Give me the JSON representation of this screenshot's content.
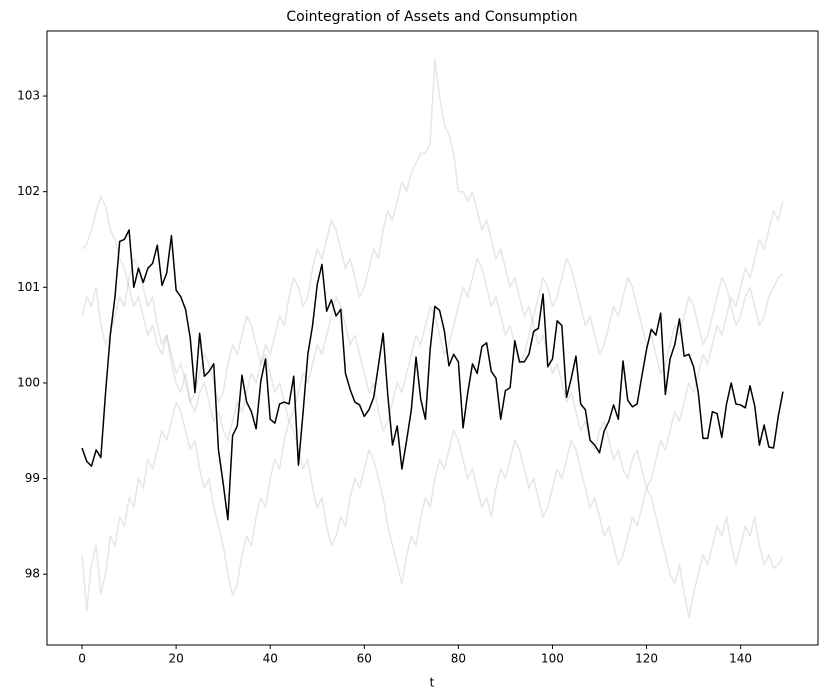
{
  "chart_data": {
    "type": "line",
    "title": "Cointegration of Assets and Consumption",
    "xlabel": "t",
    "x": [
      0,
      1,
      2,
      3,
      4,
      5,
      6,
      7,
      8,
      9,
      10,
      11,
      12,
      13,
      14,
      15,
      16,
      17,
      18,
      19,
      20,
      21,
      22,
      23,
      24,
      25,
      26,
      27,
      28,
      29,
      30,
      31,
      32,
      33,
      34,
      35,
      36,
      37,
      38,
      39,
      40,
      41,
      42,
      43,
      44,
      45,
      46,
      47,
      48,
      49,
      50,
      51,
      52,
      53,
      54,
      55,
      56,
      57,
      58,
      59,
      60,
      61,
      62,
      63,
      64,
      65,
      66,
      67,
      68,
      69,
      70,
      71,
      72,
      73,
      74,
      75,
      76,
      77,
      78,
      79,
      80,
      81,
      82,
      83,
      84,
      85,
      86,
      87,
      88,
      89,
      90,
      91,
      92,
      93,
      94,
      95,
      96,
      97,
      98,
      99,
      100,
      101,
      102,
      103,
      104,
      105,
      106,
      107,
      108,
      109,
      110,
      111,
      112,
      113,
      114,
      115,
      116,
      117,
      118,
      119,
      120,
      121,
      122,
      123,
      124,
      125,
      126,
      127,
      128,
      129,
      130,
      131,
      132,
      133,
      134,
      135,
      136,
      137,
      138,
      139,
      140,
      141,
      142,
      143,
      144,
      145,
      146,
      147,
      148,
      149
    ],
    "xlim": [
      -7.45,
      156.45
    ],
    "xticks": [
      0,
      20,
      40,
      60,
      80,
      100,
      120,
      140
    ],
    "ylim": [
      97.26,
      103.68
    ],
    "yticks": [
      98,
      99,
      100,
      101,
      102,
      103
    ],
    "series": [
      {
        "color": "#808080",
        "opacity": 0.2,
        "values": [
          101.4,
          101.45,
          101.6,
          101.8,
          101.95,
          101.85,
          101.6,
          101.5,
          101.3,
          101.2,
          101.0,
          100.8,
          100.9,
          100.7,
          100.5,
          100.6,
          100.4,
          100.3,
          100.5,
          100.2,
          100.0,
          99.9,
          100.1,
          99.8,
          99.7,
          99.9,
          100.0,
          99.8,
          99.6,
          99.7,
          99.5,
          99.4,
          99.6,
          99.8,
          99.7,
          99.9,
          100.1,
          100.0,
          100.2,
          100.4,
          100.3,
          100.5,
          100.7,
          100.6,
          100.9,
          101.1,
          101.0,
          100.8,
          100.9,
          101.2,
          101.4,
          101.3,
          101.5,
          101.7,
          101.6,
          101.4,
          101.2,
          101.3,
          101.1,
          100.9,
          101.0,
          101.2,
          101.4,
          101.3,
          101.6,
          101.8,
          101.7,
          101.9,
          102.1,
          102.0,
          102.2,
          102.3,
          102.4,
          102.4,
          102.5,
          103.38,
          103.0,
          102.7,
          102.6,
          102.4,
          102.0,
          102.0,
          101.9,
          102.0,
          101.8,
          101.6,
          101.7,
          101.5,
          101.3,
          101.4,
          101.2,
          101.0,
          101.1,
          100.9,
          100.7,
          100.8,
          100.6,
          100.4,
          100.5,
          100.3,
          100.1,
          100.2,
          100.0,
          99.8,
          99.9,
          99.7,
          99.5,
          99.6,
          99.4,
          99.3,
          99.5,
          99.6,
          99.4,
          99.2,
          99.3,
          99.1,
          99.0,
          99.2,
          99.3,
          99.1,
          98.9,
          99.0,
          99.2,
          99.4,
          99.3,
          99.5,
          99.7,
          99.6,
          99.8,
          100.0,
          99.9,
          100.1,
          100.3,
          100.2,
          100.4,
          100.6,
          100.5,
          100.7,
          100.9,
          100.8,
          101.0,
          101.2,
          101.1,
          101.3,
          101.5,
          101.4,
          101.6,
          101.8,
          101.7,
          101.9
        ]
      },
      {
        "color": "#808080",
        "opacity": 0.2,
        "values": [
          98.2,
          97.62,
          98.1,
          98.3,
          97.8,
          98.0,
          98.4,
          98.3,
          98.6,
          98.5,
          98.8,
          98.7,
          99.0,
          98.9,
          99.2,
          99.1,
          99.3,
          99.5,
          99.4,
          99.6,
          99.8,
          99.7,
          99.5,
          99.3,
          99.4,
          99.1,
          98.9,
          99.0,
          98.7,
          98.5,
          98.3,
          98.0,
          97.78,
          97.9,
          98.2,
          98.4,
          98.3,
          98.6,
          98.8,
          98.7,
          99.0,
          99.2,
          99.1,
          99.4,
          99.6,
          99.5,
          99.3,
          99.1,
          99.2,
          98.9,
          98.7,
          98.8,
          98.5,
          98.3,
          98.4,
          98.6,
          98.5,
          98.8,
          99.0,
          98.9,
          99.1,
          99.3,
          99.2,
          99.0,
          98.8,
          98.5,
          98.3,
          98.1,
          97.9,
          98.2,
          98.4,
          98.3,
          98.6,
          98.8,
          98.7,
          99.0,
          99.2,
          99.1,
          99.3,
          99.5,
          99.4,
          99.2,
          99.0,
          99.1,
          98.9,
          98.7,
          98.8,
          98.6,
          98.9,
          99.1,
          99.0,
          99.2,
          99.4,
          99.3,
          99.1,
          98.9,
          99.0,
          98.8,
          98.6,
          98.7,
          98.9,
          99.1,
          99.0,
          99.2,
          99.4,
          99.3,
          99.1,
          98.9,
          98.7,
          98.8,
          98.6,
          98.4,
          98.5,
          98.3,
          98.1,
          98.2,
          98.4,
          98.6,
          98.5,
          98.7,
          98.9,
          98.8,
          98.6,
          98.4,
          98.2,
          98.0,
          97.9,
          98.1,
          97.8,
          97.55,
          97.8,
          98.0,
          98.2,
          98.1,
          98.3,
          98.5,
          98.4,
          98.6,
          98.3,
          98.1,
          98.3,
          98.5,
          98.4,
          98.6,
          98.3,
          98.1,
          98.2,
          98.06,
          98.1,
          98.18
        ]
      },
      {
        "color": "#808080",
        "opacity": 0.2,
        "values": [
          100.7,
          100.9,
          100.8,
          101.0,
          100.6,
          100.4,
          100.5,
          100.7,
          100.9,
          100.8,
          101.1,
          101.3,
          101.2,
          101.0,
          100.8,
          100.9,
          100.6,
          100.4,
          100.5,
          100.3,
          100.1,
          100.2,
          100.0,
          99.8,
          99.9,
          100.1,
          100.3,
          100.2,
          100.0,
          99.8,
          99.9,
          100.2,
          100.4,
          100.3,
          100.5,
          100.7,
          100.6,
          100.4,
          100.2,
          100.3,
          100.1,
          99.9,
          100.0,
          99.8,
          99.6,
          99.7,
          99.9,
          100.1,
          100.0,
          100.2,
          100.4,
          100.3,
          100.5,
          100.7,
          100.9,
          100.8,
          100.6,
          100.4,
          100.5,
          100.3,
          100.1,
          99.9,
          100.0,
          99.7,
          99.5,
          99.6,
          99.8,
          100.0,
          99.9,
          100.1,
          100.3,
          100.5,
          100.4,
          100.6,
          100.8,
          100.7,
          100.5,
          100.3,
          100.4,
          100.6,
          100.8,
          101.0,
          100.9,
          101.1,
          101.3,
          101.2,
          101.0,
          100.8,
          100.9,
          100.7,
          100.5,
          100.6,
          100.4,
          100.2,
          100.3,
          100.5,
          100.7,
          100.9,
          101.1,
          101.0,
          100.8,
          100.9,
          101.1,
          101.3,
          101.2,
          101.0,
          100.8,
          100.6,
          100.7,
          100.5,
          100.3,
          100.4,
          100.6,
          100.8,
          100.7,
          100.9,
          101.1,
          101.0,
          100.8,
          100.6,
          100.4,
          100.5,
          100.3,
          100.1,
          100.2,
          100.4,
          100.6,
          100.5,
          100.7,
          100.9,
          100.8,
          100.6,
          100.4,
          100.5,
          100.7,
          100.9,
          101.1,
          101.0,
          100.8,
          100.6,
          100.7,
          100.9,
          101.0,
          100.8,
          100.6,
          100.7,
          100.9,
          101.0,
          101.1,
          101.14
        ]
      },
      {
        "color": "#000000",
        "opacity": 1,
        "values": [
          99.32,
          99.18,
          99.13,
          99.3,
          99.22,
          99.9,
          100.5,
          100.9,
          101.48,
          101.5,
          101.6,
          101.0,
          101.2,
          101.05,
          101.2,
          101.25,
          101.44,
          101.02,
          101.15,
          101.54,
          100.97,
          100.9,
          100.77,
          100.47,
          99.9,
          100.52,
          100.07,
          100.12,
          100.2,
          99.3,
          98.95,
          98.57,
          99.45,
          99.55,
          100.08,
          99.8,
          99.7,
          99.52,
          100.02,
          100.25,
          99.62,
          99.58,
          99.78,
          99.8,
          99.78,
          100.07,
          99.14,
          99.7,
          100.3,
          100.6,
          101.03,
          101.24,
          100.75,
          100.87,
          100.7,
          100.77,
          100.1,
          99.93,
          99.8,
          99.77,
          99.65,
          99.72,
          99.85,
          100.18,
          100.52,
          99.87,
          99.35,
          99.55,
          99.1,
          99.4,
          99.72,
          100.27,
          99.83,
          99.62,
          100.35,
          100.8,
          100.76,
          100.55,
          100.18,
          100.3,
          100.22,
          99.53,
          99.9,
          100.2,
          100.1,
          100.38,
          100.42,
          100.12,
          100.05,
          99.62,
          99.92,
          99.95,
          100.44,
          100.22,
          100.22,
          100.3,
          100.54,
          100.57,
          100.93,
          100.17,
          100.25,
          100.65,
          100.6,
          99.85,
          100.05,
          100.28,
          99.78,
          99.72,
          99.4,
          99.35,
          99.27,
          99.5,
          99.6,
          99.77,
          99.62,
          100.23,
          99.82,
          99.75,
          99.78,
          100.07,
          100.35,
          100.56,
          100.5,
          100.73,
          99.88,
          100.25,
          100.4,
          100.67,
          100.28,
          100.3,
          100.17,
          99.9,
          99.42,
          99.42,
          99.7,
          99.68,
          99.43,
          99.78,
          100.0,
          99.78,
          99.77,
          99.74,
          99.97,
          99.76,
          99.35,
          99.56,
          99.33,
          99.32,
          99.65,
          99.91
        ]
      }
    ]
  }
}
